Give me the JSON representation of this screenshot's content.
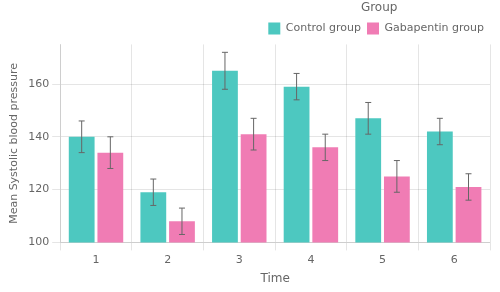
{
  "chart_data": {
    "type": "bar",
    "categories": [
      "1",
      "2",
      "3",
      "4",
      "5",
      "6"
    ],
    "series": [
      {
        "name": "Control group",
        "color": "#4DC8C0",
        "values": [
          140,
          119,
          165,
          159,
          147,
          142
        ],
        "errors": [
          6,
          5,
          7,
          5,
          6,
          5
        ]
      },
      {
        "name": "Gabapentin group",
        "color": "#F07CB4",
        "values": [
          134,
          108,
          141,
          136,
          125,
          121
        ],
        "errors": [
          6,
          5,
          6,
          5,
          6,
          5
        ]
      }
    ],
    "xlabel": "Time",
    "ylabel": "Mean Systolic blood pressure",
    "legend_title": "Group",
    "legend": "upper right",
    "ylim": [
      100,
      175
    ],
    "yticks": [
      100,
      120,
      140,
      160
    ],
    "grid": true
  }
}
